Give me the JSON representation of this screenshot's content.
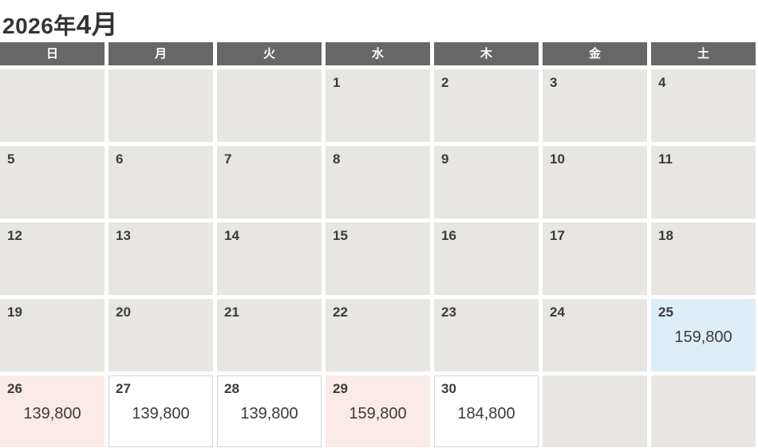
{
  "title": {
    "year": "2026年",
    "month": "4月"
  },
  "weekday_header": {
    "labels": [
      "日",
      "月",
      "火",
      "水",
      "木",
      "金",
      "土"
    ]
  },
  "calendar": {
    "weeks": [
      {
        "cells": [
          {
            "type": "empty"
          },
          {
            "type": "empty"
          },
          {
            "type": "empty"
          },
          {
            "type": "gray",
            "day": "1"
          },
          {
            "type": "gray",
            "day": "2"
          },
          {
            "type": "gray",
            "day": "3"
          },
          {
            "type": "gray",
            "day": "4"
          }
        ]
      },
      {
        "cells": [
          {
            "type": "gray",
            "day": "5"
          },
          {
            "type": "gray",
            "day": "6"
          },
          {
            "type": "gray",
            "day": "7"
          },
          {
            "type": "gray",
            "day": "8"
          },
          {
            "type": "gray",
            "day": "9"
          },
          {
            "type": "gray",
            "day": "10"
          },
          {
            "type": "gray",
            "day": "11"
          }
        ]
      },
      {
        "cells": [
          {
            "type": "gray",
            "day": "12"
          },
          {
            "type": "gray",
            "day": "13"
          },
          {
            "type": "gray",
            "day": "14"
          },
          {
            "type": "gray",
            "day": "15"
          },
          {
            "type": "gray",
            "day": "16"
          },
          {
            "type": "gray",
            "day": "17"
          },
          {
            "type": "gray",
            "day": "18"
          }
        ]
      },
      {
        "cells": [
          {
            "type": "gray",
            "day": "19"
          },
          {
            "type": "gray",
            "day": "20"
          },
          {
            "type": "gray",
            "day": "21"
          },
          {
            "type": "gray",
            "day": "22"
          },
          {
            "type": "gray",
            "day": "23"
          },
          {
            "type": "gray",
            "day": "24"
          },
          {
            "type": "blue",
            "day": "25",
            "price": "159,800"
          }
        ]
      },
      {
        "cells": [
          {
            "type": "pink",
            "day": "26",
            "price": "139,800"
          },
          {
            "type": "white",
            "day": "27",
            "price": "139,800"
          },
          {
            "type": "white",
            "day": "28",
            "price": "139,800"
          },
          {
            "type": "pink",
            "day": "29",
            "price": "159,800"
          },
          {
            "type": "white",
            "day": "30",
            "price": "184,800"
          },
          {
            "type": "empty"
          },
          {
            "type": "empty"
          }
        ]
      }
    ]
  },
  "colors": {
    "header_bg": "#676767",
    "cell_bg": "#e8e6e3",
    "available_bg": "#ffffff",
    "pink_bg": "#faeae8",
    "blue_bg": "#ddeef7",
    "text": "#3b3b3b",
    "title_text": "#333333",
    "weekday_text": "#ffffff"
  }
}
